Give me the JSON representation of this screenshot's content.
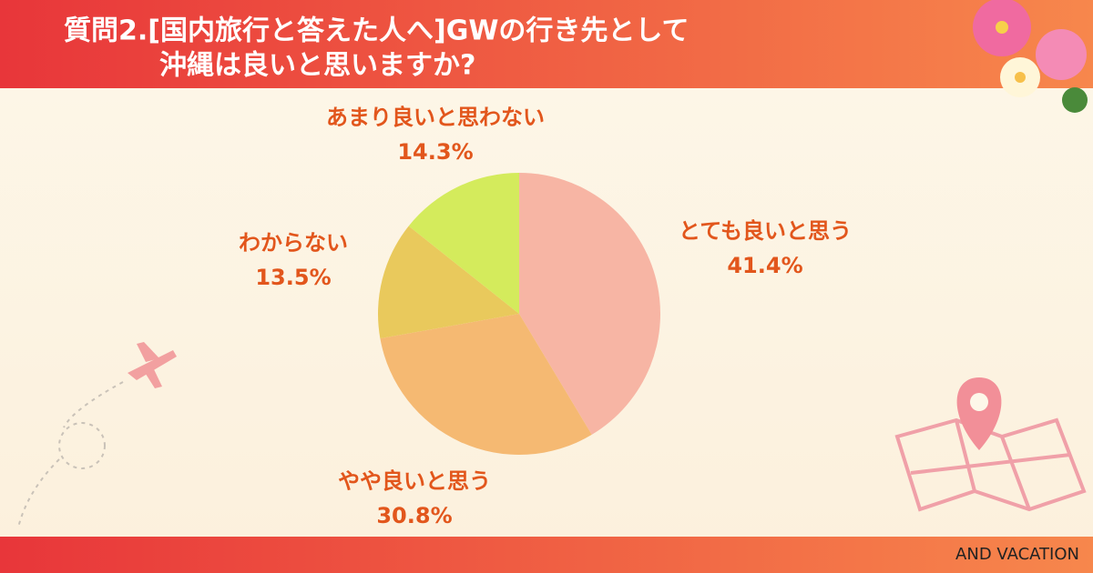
{
  "chart_data": {
    "type": "pie",
    "title": [
      "質問2.[国内旅行と答えた人へ]GWの行き先として",
      "沖縄は良いと思いますか?"
    ],
    "categories": [
      "とても良いと思う",
      "やや良いと思う",
      "わからない",
      "あまり良いと思わない"
    ],
    "values": [
      41.4,
      30.8,
      13.5,
      14.3
    ],
    "value_labels": [
      "41.4%",
      "30.8%",
      "13.5%",
      "14.3%"
    ],
    "colors": [
      "#f7b5a4",
      "#f5b972",
      "#e9c95c",
      "#d4eb5c"
    ],
    "footer": "AND VACATION"
  }
}
